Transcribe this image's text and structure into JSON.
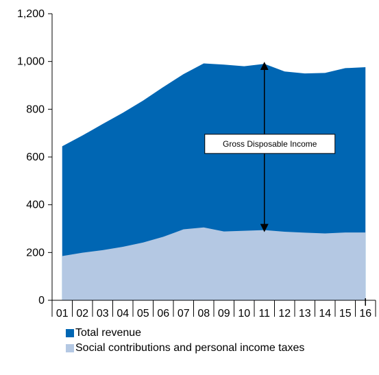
{
  "chart_data": {
    "type": "area",
    "categories": [
      "01",
      "02",
      "03",
      "04",
      "05",
      "06",
      "07",
      "08",
      "09",
      "10",
      "11",
      "12",
      "13",
      "14",
      "15",
      "16"
    ],
    "category_markers": {
      "16": "I"
    },
    "series": [
      {
        "name": "Total revenue",
        "color": "#0066b3",
        "values": [
          645,
          690,
          738,
          785,
          836,
          893,
          947,
          992,
          987,
          980,
          990,
          958,
          950,
          952,
          972,
          976
        ]
      },
      {
        "name": "Social contributions and personal income taxes",
        "color": "#b4c8e3",
        "values": [
          185,
          199,
          210,
          224,
          242,
          266,
          297,
          305,
          288,
          291,
          294,
          287,
          283,
          280,
          284,
          284
        ]
      }
    ],
    "ylim": [
      0,
      1200
    ],
    "yticks": [
      "0",
      "200",
      "400",
      "600",
      "800",
      "1,000",
      "1,200"
    ],
    "ytick_values": [
      0,
      200,
      400,
      600,
      800,
      1000,
      1200
    ],
    "annotation": {
      "label": "Gross Disposable Income",
      "at_category": "11"
    },
    "legend_position": "bottom",
    "grid": false
  }
}
